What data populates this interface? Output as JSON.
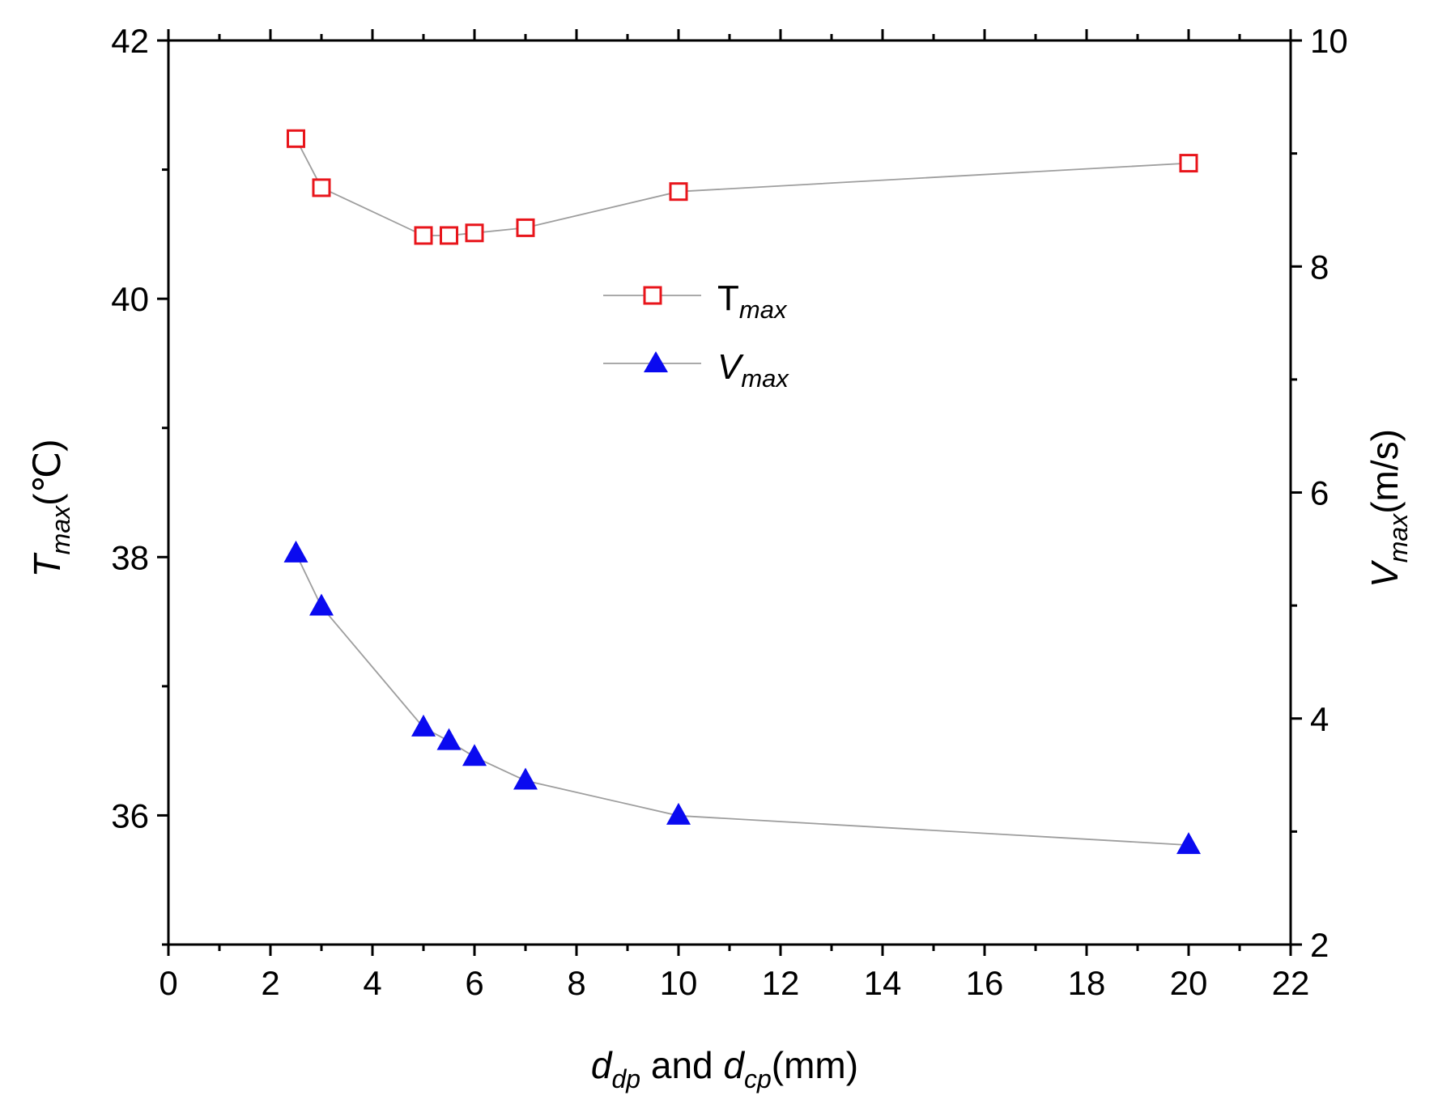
{
  "chart_data": {
    "type": "line",
    "x": [
      2.5,
      3,
      5,
      5.5,
      6,
      7,
      10,
      20
    ],
    "xlim": [
      0,
      22
    ],
    "xticks": [
      0,
      2,
      4,
      6,
      8,
      10,
      12,
      14,
      16,
      18,
      20,
      22
    ],
    "xticklabels": [
      "0",
      "2",
      "4",
      "6",
      "8",
      "10",
      "12",
      "14",
      "16",
      "18",
      "20",
      "22"
    ],
    "xlabel": {
      "v1": "d",
      "s1": "dp",
      "mid": " and ",
      "v2": "d",
      "s2": "cp",
      "tail": "(mm)"
    },
    "y_left": {
      "lim": [
        35,
        42
      ],
      "ticks": [
        36,
        38,
        40,
        42
      ],
      "ticklabels": [
        "36",
        "38",
        "40",
        "42"
      ],
      "label_main": "T",
      "label_sub": "max",
      "label_unit": "(℃)"
    },
    "y_right": {
      "lim": [
        2,
        10
      ],
      "ticks": [
        2,
        4,
        6,
        8,
        10
      ],
      "ticklabels": [
        "2",
        "4",
        "6",
        "8",
        "10"
      ],
      "label_main": "V",
      "label_sub": "max",
      "label_unit": "(m/s)"
    },
    "series": [
      {
        "name": "Tmax",
        "legend_main": "T",
        "legend_sub": "max",
        "axis": "left",
        "marker": "open-square",
        "color": "#e8151b",
        "line_color": "#9e9e9e",
        "values": [
          41.24,
          40.86,
          40.49,
          40.49,
          40.51,
          40.55,
          40.83,
          41.05
        ]
      },
      {
        "name": "Vmax",
        "legend_main": "V",
        "legend_sub": "max",
        "axis": "right",
        "marker": "filled-triangle",
        "color": "#0a0af0",
        "line_color": "#9e9e9e",
        "values": [
          5.46,
          4.99,
          3.92,
          3.8,
          3.66,
          3.45,
          3.14,
          2.88
        ]
      }
    ],
    "legend_position": "center-top",
    "grid": false
  }
}
